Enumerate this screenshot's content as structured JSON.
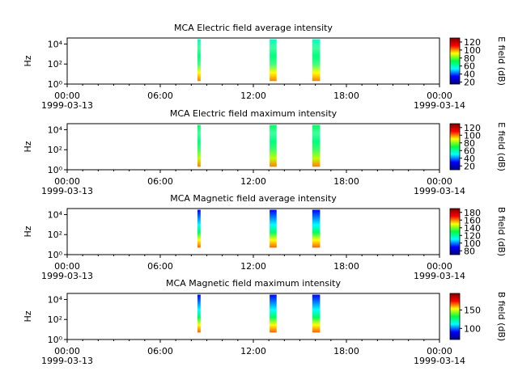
{
  "chart_data": [
    {
      "type": "spectrogram",
      "title": "MCA  Electric field average intensity",
      "ylabel": "Hz",
      "log_y": true,
      "ylim": [
        1,
        40000
      ],
      "yticks": [
        {
          "value": 1,
          "label": "10⁰"
        },
        {
          "value": 100,
          "label": "10²"
        },
        {
          "value": 10000,
          "label": "10⁴"
        }
      ],
      "xlim": [
        0,
        24
      ],
      "xticks": [
        {
          "value": 0,
          "label": "00:00"
        },
        {
          "value": 6,
          "label": "06:00"
        },
        {
          "value": 12,
          "label": "12:00"
        },
        {
          "value": 18,
          "label": "18:00"
        },
        {
          "value": 24,
          "label": "00:00"
        }
      ],
      "x_dates": [
        {
          "value": 0,
          "label": "1999-03-13"
        },
        {
          "value": 24,
          "label": "1999-03-14"
        }
      ],
      "bursts": [
        {
          "start": 8.4,
          "end": 8.6,
          "fmin": 2,
          "fmax": 30000
        },
        {
          "start": 13.05,
          "end": 13.5,
          "fmin": 2,
          "fmax": 30000
        },
        {
          "start": 15.8,
          "end": 16.3,
          "fmin": 2,
          "fmax": 30000
        }
      ],
      "burst_colors": [
        "#ff8000",
        "#ffff00",
        "#40ff80",
        "#00ff80",
        "#40ffa0",
        "#00ffc0"
      ],
      "colorbar_label": "E field (dB)",
      "clim": [
        15,
        130
      ],
      "cticks": [
        20,
        40,
        60,
        80,
        100,
        120
      ],
      "colormap": [
        "#00007f",
        "#0000ff",
        "#00ffff",
        "#00ff40",
        "#ffff00",
        "#ff0000",
        "#7f0000"
      ]
    },
    {
      "type": "spectrogram",
      "title": "MCA  Electric field maximum intensity",
      "ylabel": "Hz",
      "log_y": true,
      "ylim": [
        1,
        40000
      ],
      "yticks": [
        {
          "value": 1,
          "label": "10⁰"
        },
        {
          "value": 100,
          "label": "10²"
        },
        {
          "value": 10000,
          "label": "10⁴"
        }
      ],
      "xlim": [
        0,
        24
      ],
      "xticks": [
        {
          "value": 0,
          "label": "00:00"
        },
        {
          "value": 6,
          "label": "06:00"
        },
        {
          "value": 12,
          "label": "12:00"
        },
        {
          "value": 18,
          "label": "18:00"
        },
        {
          "value": 24,
          "label": "00:00"
        }
      ],
      "x_dates": [
        {
          "value": 0,
          "label": "1999-03-13"
        },
        {
          "value": 24,
          "label": "1999-03-14"
        }
      ],
      "bursts": [
        {
          "start": 8.4,
          "end": 8.6,
          "fmin": 2,
          "fmax": 30000
        },
        {
          "start": 13.05,
          "end": 13.5,
          "fmin": 2,
          "fmax": 30000
        },
        {
          "start": 15.8,
          "end": 16.3,
          "fmin": 2,
          "fmax": 30000
        }
      ],
      "burst_colors": [
        "#ff8000",
        "#c0ff00",
        "#40ff60",
        "#00ff80",
        "#40ffa0",
        "#00ff60"
      ],
      "colorbar_label": "E field (dB)",
      "clim": [
        10,
        130
      ],
      "cticks": [
        20,
        40,
        60,
        80,
        100,
        120
      ],
      "colormap": [
        "#00007f",
        "#0000ff",
        "#00ffff",
        "#00ff40",
        "#ffff00",
        "#ff0000",
        "#7f0000"
      ]
    },
    {
      "type": "spectrogram",
      "title": "MCA  Magnetic field average intensity",
      "ylabel": "Hz",
      "log_y": true,
      "ylim": [
        1,
        40000
      ],
      "yticks": [
        {
          "value": 1,
          "label": "10⁰"
        },
        {
          "value": 100,
          "label": "10²"
        },
        {
          "value": 10000,
          "label": "10⁴"
        }
      ],
      "xlim": [
        0,
        24
      ],
      "xticks": [
        {
          "value": 0,
          "label": "00:00"
        },
        {
          "value": 6,
          "label": "06:00"
        },
        {
          "value": 12,
          "label": "12:00"
        },
        {
          "value": 18,
          "label": "18:00"
        },
        {
          "value": 24,
          "label": "00:00"
        }
      ],
      "x_dates": [
        {
          "value": 0,
          "label": "1999-03-13"
        },
        {
          "value": 24,
          "label": "1999-03-14"
        }
      ],
      "bursts": [
        {
          "start": 8.4,
          "end": 8.6,
          "fmin": 5,
          "fmax": 30000
        },
        {
          "start": 13.05,
          "end": 13.5,
          "fmin": 5,
          "fmax": 30000
        },
        {
          "start": 15.8,
          "end": 16.3,
          "fmin": 5,
          "fmax": 30000
        }
      ],
      "burst_colors": [
        "#ff6000",
        "#ffff00",
        "#00ff60",
        "#00ffff",
        "#0080ff",
        "#0000ff"
      ],
      "colorbar_label": "B field (dB)",
      "clim": [
        70,
        190
      ],
      "cticks": [
        80,
        100,
        120,
        140,
        160,
        180
      ],
      "colormap": [
        "#00007f",
        "#0000ff",
        "#00ffff",
        "#00ff40",
        "#ffff00",
        "#ff0000",
        "#7f0000"
      ]
    },
    {
      "type": "spectrogram",
      "title": "MCA  Magnetic field maximum intensity",
      "ylabel": "Hz",
      "log_y": true,
      "ylim": [
        1,
        40000
      ],
      "yticks": [
        {
          "value": 1,
          "label": "10⁰"
        },
        {
          "value": 100,
          "label": "10²"
        },
        {
          "value": 10000,
          "label": "10⁴"
        }
      ],
      "xlim": [
        0,
        24
      ],
      "xticks": [
        {
          "value": 0,
          "label": "00:00"
        },
        {
          "value": 6,
          "label": "06:00"
        },
        {
          "value": 12,
          "label": "12:00"
        },
        {
          "value": 18,
          "label": "18:00"
        },
        {
          "value": 24,
          "label": "00:00"
        }
      ],
      "x_dates": [
        {
          "value": 0,
          "label": "1999-03-13"
        },
        {
          "value": 24,
          "label": "1999-03-14"
        }
      ],
      "bursts": [
        {
          "start": 8.4,
          "end": 8.6,
          "fmin": 5,
          "fmax": 30000
        },
        {
          "start": 13.05,
          "end": 13.5,
          "fmin": 5,
          "fmax": 30000
        },
        {
          "start": 15.8,
          "end": 16.3,
          "fmin": 5,
          "fmax": 30000
        }
      ],
      "burst_colors": [
        "#ff6000",
        "#ffff00",
        "#00ff60",
        "#00ffff",
        "#0080ff",
        "#0000ff"
      ],
      "colorbar_label": "B field (dB)",
      "clim": [
        70,
        195
      ],
      "cticks": [
        100,
        150
      ],
      "colormap": [
        "#00007f",
        "#0000ff",
        "#00ffff",
        "#00ff40",
        "#ffff00",
        "#ff0000",
        "#7f0000"
      ]
    }
  ]
}
